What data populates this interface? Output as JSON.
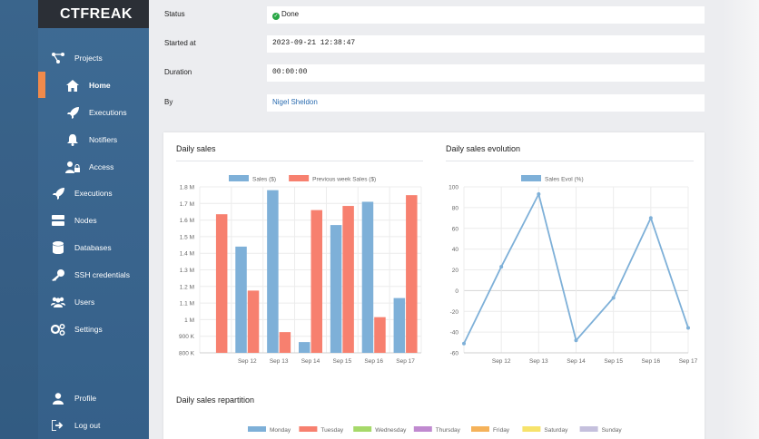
{
  "app": {
    "logo": "CTFREAK"
  },
  "sidebar": {
    "items": [
      {
        "label": "Projects",
        "icon": "projects-icon"
      },
      {
        "label": "Home",
        "icon": "home-icon"
      },
      {
        "label": "Executions",
        "icon": "rocket-icon"
      },
      {
        "label": "Notifiers",
        "icon": "bell-icon"
      },
      {
        "label": "Access",
        "icon": "users-lock-icon"
      },
      {
        "label": "Executions",
        "icon": "rocket-icon"
      },
      {
        "label": "Nodes",
        "icon": "server-icon"
      },
      {
        "label": "Databases",
        "icon": "database-icon"
      },
      {
        "label": "SSH credentials",
        "icon": "key-icon"
      },
      {
        "label": "Users",
        "icon": "users-icon"
      },
      {
        "label": "Settings",
        "icon": "gears-icon"
      },
      {
        "label": "Profile",
        "icon": "user-icon"
      },
      {
        "label": "Log out",
        "icon": "logout-icon"
      }
    ]
  },
  "details": {
    "status_label": "Status",
    "status_value": "Done",
    "started_label": "Started at",
    "started_value": "2023-09-21 12:38:47",
    "duration_label": "Duration",
    "duration_value": "00:00:00",
    "by_label": "By",
    "by_value": "Nigel Sheldon"
  },
  "colors": {
    "accent": "#f08a4b",
    "blue": "#7eb0d8",
    "red": "#f7806f"
  },
  "charts": {
    "sales_title": "Daily sales",
    "evolution_title": "Daily sales evolution",
    "repartition_title": "Daily sales repartition"
  },
  "chart_data": [
    {
      "type": "bar",
      "title": "Daily sales",
      "categories": [
        "",
        "Sep 12",
        "Sep 13",
        "Sep 14",
        "Sep 15",
        "Sep 16",
        "Sep 17"
      ],
      "series": [
        {
          "name": "Sales ($)",
          "color": "#7eb0d8",
          "values": [
            800000,
            1440000,
            1780000,
            865000,
            1570000,
            1710000,
            1130000
          ]
        },
        {
          "name": "Previous week Sales ($)",
          "color": "#f7806f",
          "values": [
            1635000,
            1175000,
            925000,
            1660000,
            1685000,
            1015000,
            1750000
          ]
        }
      ],
      "yticks": [
        "800 K",
        "900 K",
        "1 M",
        "1.1 M",
        "1.2 M",
        "1.3 M",
        "1.4 M",
        "1.5 M",
        "1.6 M",
        "1.7 M",
        "1.8 M"
      ],
      "ylim": [
        800000,
        1800000
      ]
    },
    {
      "type": "line",
      "title": "Daily sales evolution",
      "categories": [
        "",
        "Sep 12",
        "Sep 13",
        "Sep 14",
        "Sep 15",
        "Sep 16",
        "Sep 17"
      ],
      "series": [
        {
          "name": "Sales Evol (%)",
          "color": "#7eb0d8",
          "values": [
            -51,
            23,
            93,
            -48,
            -7,
            70,
            -36
          ]
        }
      ],
      "yticks": [
        "-60",
        "-40",
        "-20",
        "0",
        "20",
        "40",
        "60",
        "80",
        "100"
      ],
      "ylim": [
        -60,
        100
      ]
    },
    {
      "type": "pie",
      "title": "Daily sales repartition",
      "legend": [
        {
          "name": "Monday",
          "color": "#7eb0d8"
        },
        {
          "name": "Tuesday",
          "color": "#f7806f"
        },
        {
          "name": "Wednesday",
          "color": "#a6d96a"
        },
        {
          "name": "Thursday",
          "color": "#c08ad0"
        },
        {
          "name": "Friday",
          "color": "#f5b25a"
        },
        {
          "name": "Saturday",
          "color": "#f7e36b"
        },
        {
          "name": "Sunday",
          "color": "#c5c0dd"
        }
      ]
    }
  ]
}
